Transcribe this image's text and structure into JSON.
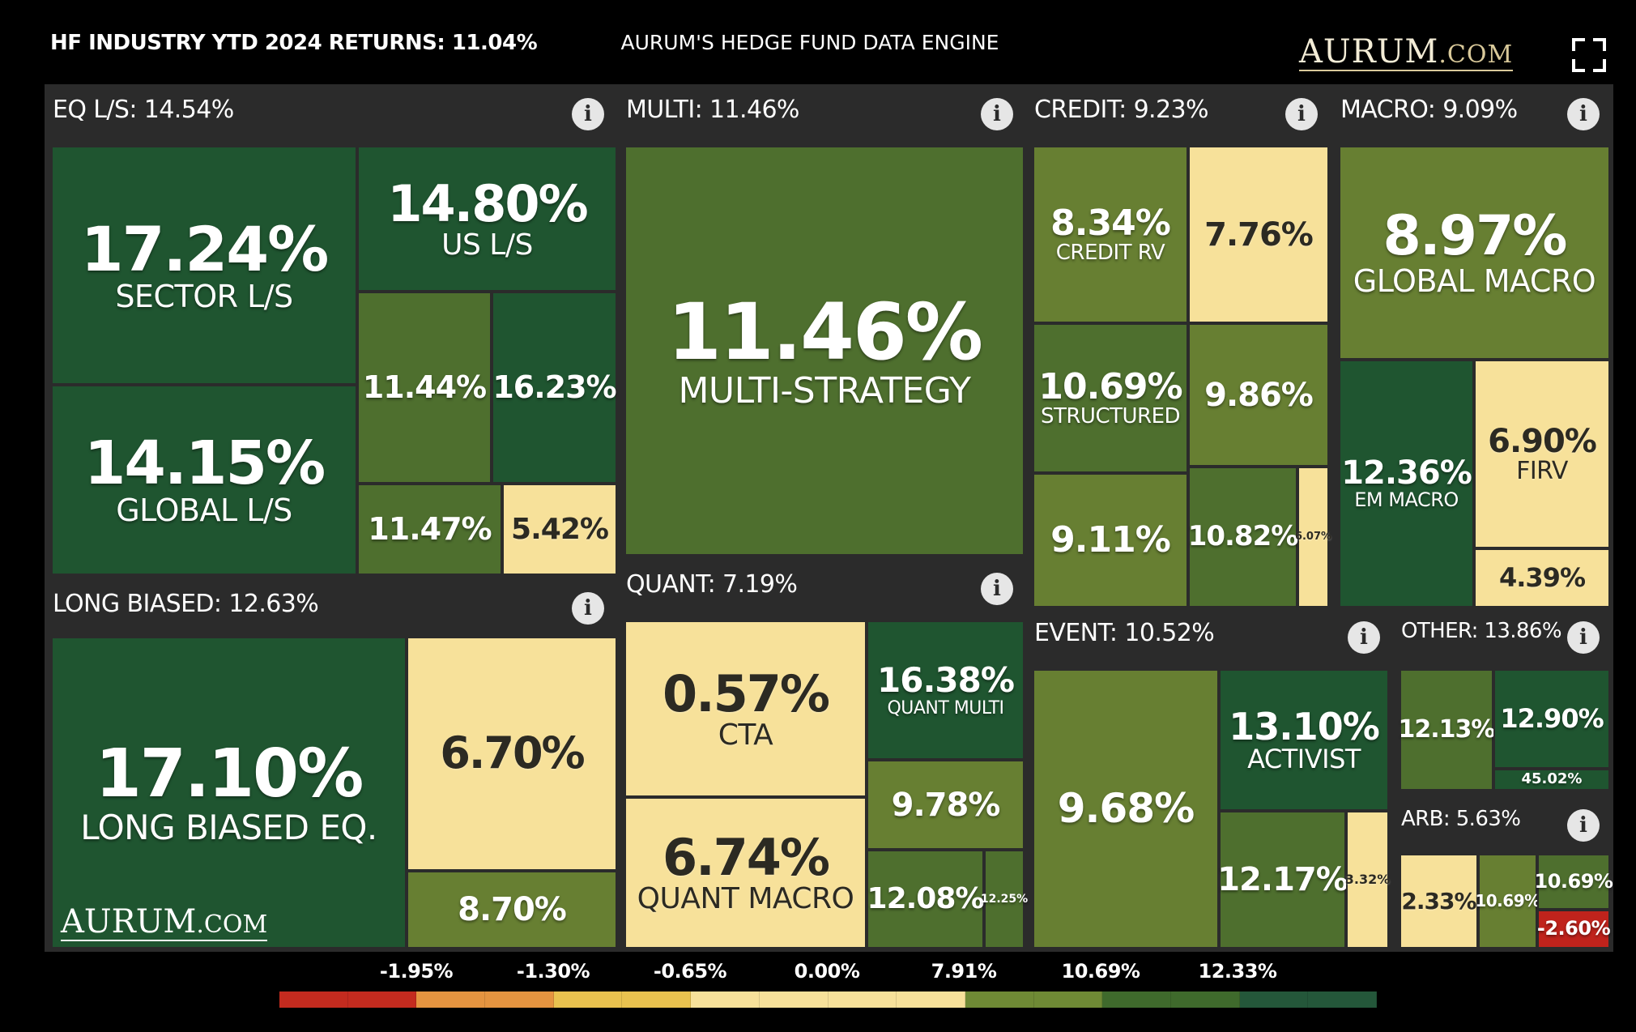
{
  "header": {
    "industry_label": "HF INDUSTRY YTD 2024 RETURNS: 11.04%",
    "center_title": "AURUM'S HEDGE FUND DATA ENGINE",
    "brand_main": "AURUM",
    "brand_suffix": ".COM",
    "fullscreen_icon": "fullscreen-icon"
  },
  "groups": {
    "eq_ls": "EQ L/S: 14.54%",
    "multi": "MULTI: 11.46%",
    "credit": "CREDIT: 9.23%",
    "macro": "MACRO: 9.09%",
    "long_biased": "LONG BIASED: 12.63%",
    "quant": "QUANT: 7.19%",
    "event": "EVENT: 10.52%",
    "other": "OTHER: 13.86%",
    "arb": "ARB: 5.63%"
  },
  "info_glyph": "i",
  "tiles": {
    "sector_ls": {
      "value": "17.24%",
      "name": "SECTOR L/S"
    },
    "us_ls": {
      "value": "14.80%",
      "name": "US L/S"
    },
    "global_ls": {
      "value": "14.15%",
      "name": "GLOBAL L/S"
    },
    "eq_a": {
      "value": "11.44%"
    },
    "eq_b": {
      "value": "16.23%"
    },
    "eq_c": {
      "value": "11.47%"
    },
    "eq_d": {
      "value": "5.42%"
    },
    "multi_strategy": {
      "value": "11.46%",
      "name": "MULTI-STRATEGY"
    },
    "credit_rv": {
      "value": "8.34%",
      "name": "CREDIT RV"
    },
    "credit_a": {
      "value": "7.76%"
    },
    "structured": {
      "value": "10.69%",
      "name": "STRUCTURED"
    },
    "credit_b": {
      "value": "9.86%"
    },
    "credit_c": {
      "value": "9.11%"
    },
    "credit_d": {
      "value": "10.82%"
    },
    "credit_e": {
      "value": "6.07%"
    },
    "global_macro": {
      "value": "8.97%",
      "name": "GLOBAL MACRO"
    },
    "em_macro": {
      "value": "12.36%",
      "name": "EM MACRO"
    },
    "firv": {
      "value": "6.90%",
      "name": "FIRV"
    },
    "macro_a": {
      "value": "4.39%"
    },
    "long_biased_eq": {
      "value": "17.10%",
      "name": "LONG BIASED EQ."
    },
    "lb_a": {
      "value": "6.70%"
    },
    "lb_b": {
      "value": "8.70%"
    },
    "cta": {
      "value": "0.57%",
      "name": "CTA"
    },
    "quant_multi": {
      "value": "16.38%",
      "name": "QUANT MULTI"
    },
    "quant_a": {
      "value": "9.78%"
    },
    "quant_macro": {
      "value": "6.74%",
      "name": "QUANT MACRO"
    },
    "quant_b": {
      "value": "12.08%"
    },
    "quant_c": {
      "value": "12.25%"
    },
    "event_a": {
      "value": "9.68%"
    },
    "activist": {
      "value": "13.10%",
      "name": "ACTIVIST"
    },
    "event_b": {
      "value": "12.17%"
    },
    "event_c": {
      "value": "3.32%"
    },
    "other_a": {
      "value": "12.13%"
    },
    "other_b": {
      "value": "12.90%"
    },
    "other_c": {
      "value": "45.02%"
    },
    "arb_a": {
      "value": "2.33%"
    },
    "arb_b": {
      "value": "10.69%"
    },
    "arb_c": {
      "value": "10.69%"
    },
    "arb_d": {
      "value": "-2.60%"
    }
  },
  "watermark": {
    "main": "AURUM",
    "suffix": ".COM"
  },
  "legend": {
    "labels": [
      "-1.95%",
      "-1.30%",
      "-0.65%",
      "0.00%",
      "7.91%",
      "10.69%",
      "12.33%"
    ],
    "colors": [
      "#c42b1f",
      "#c42b1f",
      "#e59440",
      "#e59440",
      "#e9c24f",
      "#e9c24f",
      "#f7e19a",
      "#f7e19a",
      "#f7e19a",
      "#f7e19a",
      "#6f8a35",
      "#6f8a35",
      "#3f6a2c",
      "#3f6a2c",
      "#24573a",
      "#24573a"
    ]
  }
}
